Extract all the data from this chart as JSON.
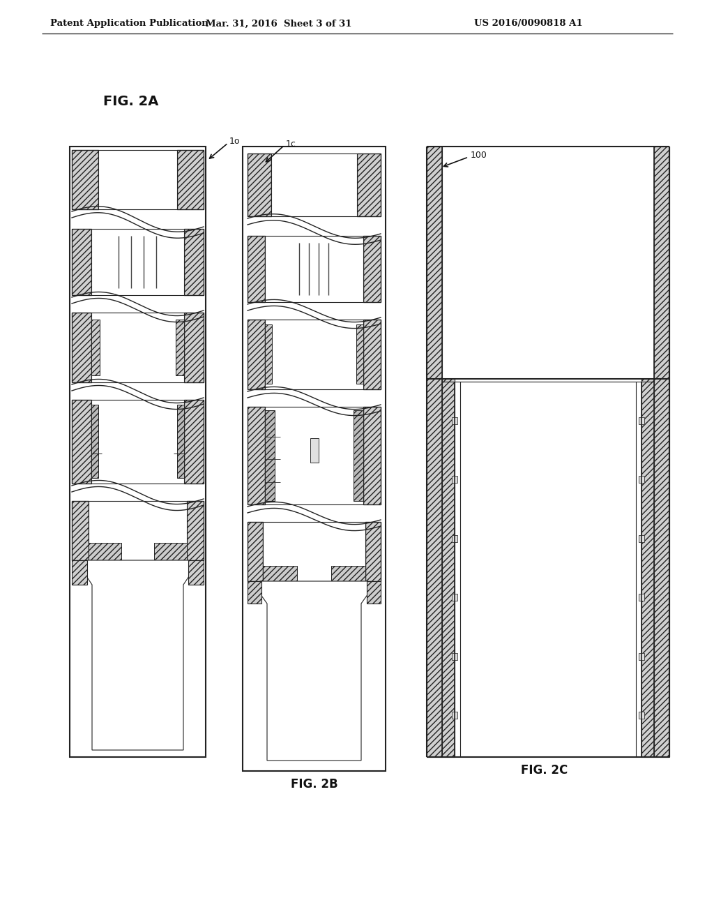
{
  "bg_color": "#ffffff",
  "header_left": "Patent Application Publication",
  "header_mid": "Mar. 31, 2016  Sheet 3 of 31",
  "header_right": "US 2016/0090818 A1",
  "hatch_color": "#d0d0d0",
  "line_color": "#222222",
  "fig2a_label": "FIG. 2A",
  "fig2b_label": "FIG. 2B",
  "fig2c_label": "FIG. 2C",
  "ref_1o": "1o",
  "ref_1c": "1c",
  "ref_100": "100"
}
